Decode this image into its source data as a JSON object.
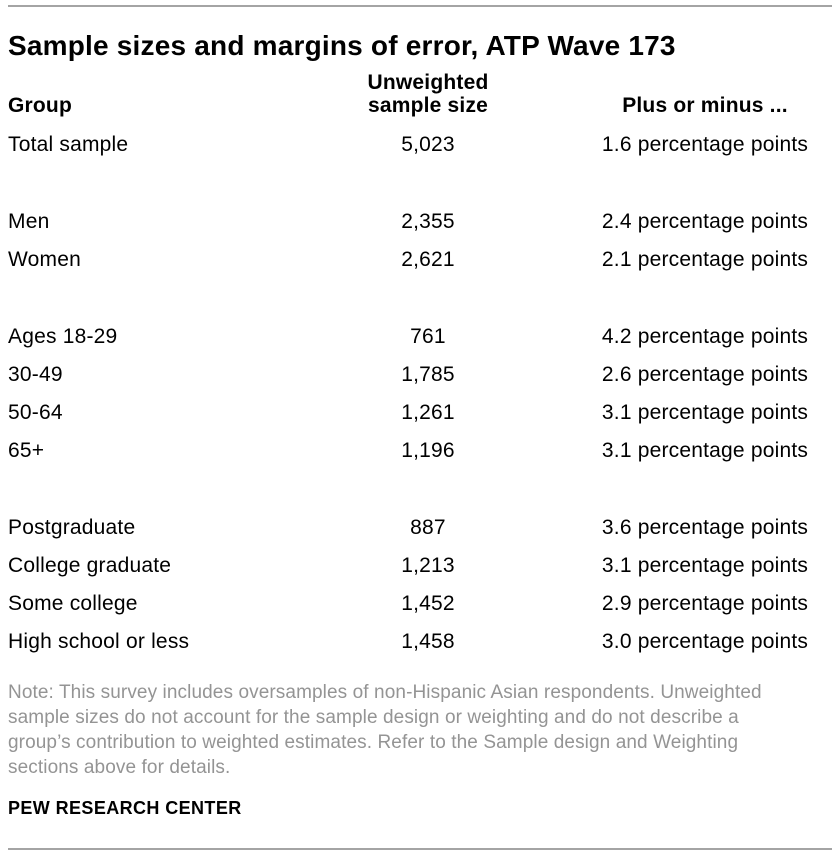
{
  "colors": {
    "text": "#000000",
    "note_text": "#949494",
    "rule": "#a4a4a4",
    "background": "#ffffff"
  },
  "chart_data": {
    "type": "table",
    "title": "Sample sizes and margins of error, ATP Wave 173",
    "columns": [
      "Group",
      "Unweighted sample size",
      "Plus or minus ..."
    ],
    "column_headers_display": {
      "group": "Group",
      "sample_size_line1": "Unweighted",
      "sample_size_line2": "sample size",
      "margin": "Plus or minus ..."
    },
    "sections": [
      {
        "rows": [
          {
            "group": "Total sample",
            "unweighted_sample_size": "5,023",
            "margin_of_error": "1.6 percentage points"
          }
        ]
      },
      {
        "rows": [
          {
            "group": "Men",
            "unweighted_sample_size": "2,355",
            "margin_of_error": "2.4 percentage points"
          },
          {
            "group": "Women",
            "unweighted_sample_size": "2,621",
            "margin_of_error": "2.1 percentage points"
          }
        ]
      },
      {
        "rows": [
          {
            "group": "Ages 18-29",
            "unweighted_sample_size": "761",
            "margin_of_error": "4.2 percentage points"
          },
          {
            "group": "30-49",
            "unweighted_sample_size": "1,785",
            "margin_of_error": "2.6 percentage points"
          },
          {
            "group": "50-64",
            "unweighted_sample_size": "1,261",
            "margin_of_error": "3.1 percentage points"
          },
          {
            "group": "65+",
            "unweighted_sample_size": "1,196",
            "margin_of_error": "3.1 percentage points"
          }
        ]
      },
      {
        "rows": [
          {
            "group": "Postgraduate",
            "unweighted_sample_size": "887",
            "margin_of_error": "3.6 percentage points"
          },
          {
            "group": "College graduate",
            "unweighted_sample_size": "1,213",
            "margin_of_error": "3.1 percentage points"
          },
          {
            "group": "Some college",
            "unweighted_sample_size": "1,452",
            "margin_of_error": "2.9 percentage points"
          },
          {
            "group": "High school or less",
            "unweighted_sample_size": "1,458",
            "margin_of_error": "3.0 percentage points"
          }
        ]
      }
    ]
  },
  "note": {
    "lines": [
      "Note: This survey includes oversamples of non-Hispanic Asian respondents. Unweighted",
      "sample sizes do not account for the sample design or weighting and do not describe a",
      "group’s contribution to weighted estimates. Refer to the Sample design and Weighting",
      "sections above for details."
    ]
  },
  "footer": {
    "brand": "PEW RESEARCH CENTER"
  }
}
